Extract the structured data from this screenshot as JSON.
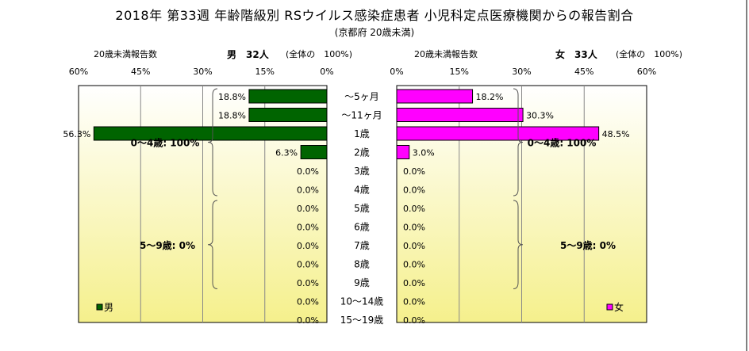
{
  "title": "2018年 第33週 年齢階級別 RSウイルス感染症患者 小児科定点医療機関からの報告割合",
  "subtitle": "(京都府 20歳未満)",
  "male_header": {
    "axis_caption": "20歳未満報告数",
    "sex_count": "男　32人",
    "total_note": "(全体の　100%)"
  },
  "female_header": {
    "axis_caption": "20歳未満報告数",
    "sex_count": "女　33人",
    "total_note": "(全体の　100%)"
  },
  "colors": {
    "male": "#006400",
    "female": "#ff00ff",
    "plot_bg_top": "#ffffff",
    "plot_bg_bottom": "#f5f08c"
  },
  "chart_data": [
    {
      "type": "bar",
      "orientation": "horizontal",
      "direction": "right-to-left",
      "series": [
        {
          "name": "男",
          "values": [
            18.8,
            18.8,
            56.3,
            6.3,
            0.0,
            0.0,
            0.0,
            0.0,
            0.0,
            0.0,
            0.0,
            0.0,
            0.0
          ]
        }
      ],
      "categories": [
        "〜5ヶ月",
        "〜11ヶ月",
        "1歳",
        "2歳",
        "3歳",
        "4歳",
        "5歳",
        "6歳",
        "7歳",
        "8歳",
        "9歳",
        "10〜14歳",
        "15〜19歳"
      ],
      "value_labels": [
        "18.8%",
        "18.8%",
        "56.3%",
        "6.3%",
        "0.0%",
        "0.0%",
        "0.0%",
        "0.0%",
        "0.0%",
        "0.0%",
        "0.0%",
        "0.0%",
        "0.0%"
      ],
      "xlim": [
        0,
        60
      ],
      "ticks": [
        "60%",
        "45%",
        "30%",
        "15%",
        "0%"
      ],
      "grid": true,
      "legend": "bottom-left",
      "annotations": [
        "0〜4歳: 100%",
        "5〜9歳: 0%"
      ]
    },
    {
      "type": "bar",
      "orientation": "horizontal",
      "direction": "left-to-right",
      "series": [
        {
          "name": "女",
          "values": [
            18.2,
            30.3,
            48.5,
            3.0,
            0.0,
            0.0,
            0.0,
            0.0,
            0.0,
            0.0,
            0.0,
            0.0,
            0.0
          ]
        }
      ],
      "categories": [
        "〜5ヶ月",
        "〜11ヶ月",
        "1歳",
        "2歳",
        "3歳",
        "4歳",
        "5歳",
        "6歳",
        "7歳",
        "8歳",
        "9歳",
        "10〜14歳",
        "15〜19歳"
      ],
      "value_labels": [
        "18.2%",
        "30.3%",
        "48.5%",
        "3.0%",
        "0.0%",
        "0.0%",
        "0.0%",
        "0.0%",
        "0.0%",
        "0.0%",
        "0.0%",
        "0.0%",
        "0.0%"
      ],
      "xlim": [
        0,
        60
      ],
      "ticks": [
        "0%",
        "15%",
        "30%",
        "45%",
        "60%"
      ],
      "grid": true,
      "legend": "bottom-right",
      "annotations": [
        "0〜4歳: 100%",
        "5〜9歳: 0%"
      ]
    }
  ]
}
